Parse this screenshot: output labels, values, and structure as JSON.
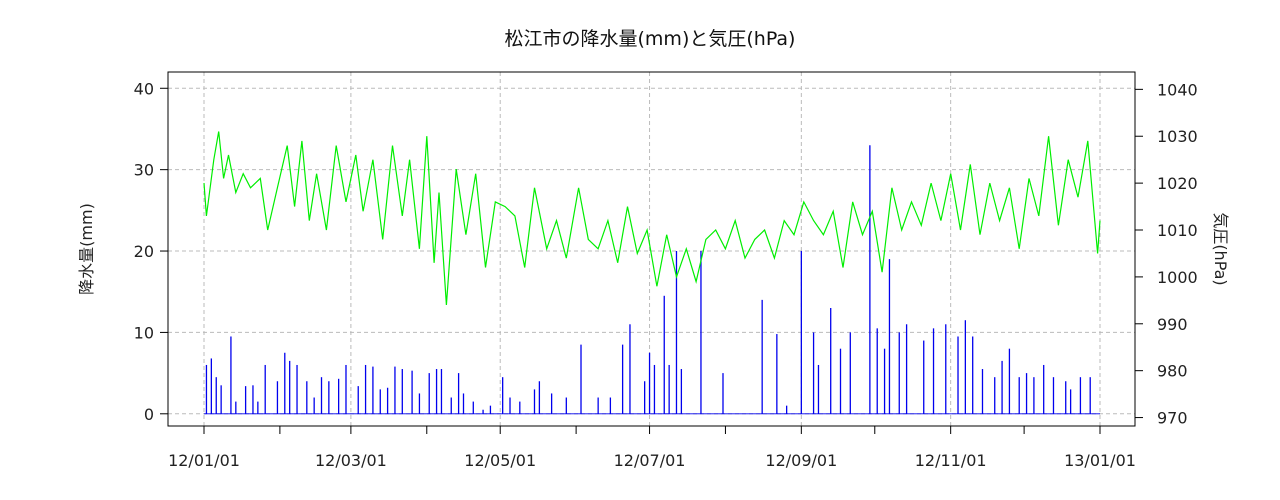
{
  "chart_data": {
    "type": "bar+line",
    "title": "松江市の降水量(mm)と気圧(hPa)",
    "ylabel_left": "降水量(mm)",
    "ylabel_right": "気圧(hPa)",
    "x_tick_labels": [
      "12/01/01",
      "12/03/01",
      "12/05/01",
      "12/07/01",
      "12/09/01",
      "12/11/01",
      "13/01/01"
    ],
    "y_left_ticks": [
      0,
      10,
      20,
      30,
      40
    ],
    "y_right_ticks": [
      970,
      980,
      990,
      1000,
      1010,
      1020,
      1030,
      1040
    ],
    "ylim_left": [
      -1.5,
      42
    ],
    "ylim_right": [
      968.2,
      1043.7
    ],
    "grid": true,
    "grid_color": "#bbbbbb",
    "series": [
      {
        "type": "bar",
        "axis": "left",
        "color": "#0000ee",
        "x": [
          "12/01/02",
          "12/01/04",
          "12/01/06",
          "12/01/08",
          "12/01/12",
          "12/01/14",
          "12/01/18",
          "12/01/21",
          "12/01/23",
          "12/01/26",
          "12/01/31",
          "12/02/03",
          "12/02/05",
          "12/02/08",
          "12/02/12",
          "12/02/15",
          "12/02/18",
          "12/02/21",
          "12/02/25",
          "12/02/28",
          "12/03/04",
          "12/03/07",
          "12/03/10",
          "12/03/13",
          "12/03/16",
          "12/03/19",
          "12/03/22",
          "12/03/26",
          "12/03/29",
          "12/04/02",
          "12/04/05",
          "12/04/07",
          "12/04/11",
          "12/04/14",
          "12/04/16",
          "12/04/20",
          "12/04/24",
          "12/04/27",
          "12/05/02",
          "12/05/05",
          "12/05/09",
          "12/05/15",
          "12/05/17",
          "12/05/22",
          "12/05/28",
          "12/06/03",
          "12/06/10",
          "12/06/15",
          "12/06/20",
          "12/06/23",
          "12/06/29",
          "12/07/01",
          "12/07/03",
          "12/07/07",
          "12/07/09",
          "12/07/12",
          "12/07/14",
          "12/07/22",
          "12/07/31",
          "12/08/16",
          "12/08/22",
          "12/08/26",
          "12/09/01",
          "12/09/06",
          "12/09/08",
          "12/09/13",
          "12/09/17",
          "12/09/21",
          "12/09/29",
          "12/10/02",
          "12/10/05",
          "12/10/07",
          "12/10/11",
          "12/10/14",
          "12/10/21",
          "12/10/25",
          "12/10/30",
          "12/11/04",
          "12/11/07",
          "12/11/10",
          "12/11/14",
          "12/11/19",
          "12/11/22",
          "12/11/25",
          "12/11/29",
          "12/12/02",
          "12/12/05",
          "12/12/09",
          "12/12/13",
          "12/12/18",
          "12/12/20",
          "12/12/24",
          "12/12/28"
        ],
        "values": [
          6,
          6.8,
          4.5,
          3.5,
          9.5,
          1.5,
          3.4,
          3.5,
          1.5,
          6,
          4,
          7.5,
          6.5,
          6,
          4,
          2,
          4.5,
          4,
          4.3,
          6,
          3.4,
          6,
          5.8,
          3,
          3.2,
          5.8,
          5.5,
          5.3,
          2.5,
          5,
          5.5,
          5.5,
          2,
          5,
          2.5,
          1.5,
          0.5,
          1,
          4.5,
          2,
          1.5,
          3,
          4,
          2.5,
          2,
          8.5,
          2,
          2,
          8.5,
          11,
          4,
          7.5,
          6,
          14.5,
          6,
          20,
          5.5,
          20,
          5,
          14,
          9.8,
          1,
          20,
          10,
          6,
          13,
          8,
          10,
          33,
          10.5,
          8,
          19,
          10,
          11,
          9,
          10.5,
          11,
          9.5,
          11.5,
          9.5,
          5.5,
          4.5,
          6.5,
          8,
          4.5,
          5,
          4.5,
          6,
          4.5,
          4,
          3,
          4.5,
          4.5
        ]
      },
      {
        "type": "line",
        "axis": "right",
        "color": "#00ee00",
        "x": [
          "12/01/01",
          "12/01/02",
          "12/01/03",
          "12/01/05",
          "12/01/07",
          "12/01/09",
          "12/01/11",
          "12/01/14",
          "12/01/17",
          "12/01/20",
          "12/01/24",
          "12/01/27",
          "12/01/31",
          "12/02/04",
          "12/02/07",
          "12/02/10",
          "12/02/13",
          "12/02/16",
          "12/02/20",
          "12/02/24",
          "12/02/28",
          "12/03/03",
          "12/03/06",
          "12/03/10",
          "12/03/14",
          "12/03/18",
          "12/03/22",
          "12/03/25",
          "12/03/29",
          "12/04/01",
          "12/04/04",
          "12/04/06",
          "12/04/09",
          "12/04/13",
          "12/04/17",
          "12/04/21",
          "12/04/25",
          "12/04/29",
          "12/05/03",
          "12/05/07",
          "12/05/11",
          "12/05/15",
          "12/05/20",
          "12/05/24",
          "12/05/28",
          "12/06/02",
          "12/06/06",
          "12/06/10",
          "12/06/14",
          "12/06/18",
          "12/06/22",
          "12/06/26",
          "12/06/30",
          "12/07/04",
          "12/07/08",
          "12/07/12",
          "12/07/16",
          "12/07/20",
          "12/07/24",
          "12/07/28",
          "12/08/01",
          "12/08/05",
          "12/08/09",
          "12/08/13",
          "12/08/17",
          "12/08/21",
          "12/08/25",
          "12/08/29",
          "12/09/02",
          "12/09/06",
          "12/09/10",
          "12/09/14",
          "12/09/18",
          "12/09/22",
          "12/09/26",
          "12/09/30",
          "12/10/04",
          "12/10/08",
          "12/10/12",
          "12/10/16",
          "12/10/20",
          "12/10/24",
          "12/10/28",
          "12/11/01",
          "12/11/05",
          "12/11/09",
          "12/11/13",
          "12/11/17",
          "12/11/21",
          "12/11/25",
          "12/11/29",
          "12/12/03",
          "12/12/07",
          "12/12/11",
          "12/12/15",
          "12/12/19",
          "12/12/23",
          "12/12/27",
          "12/12/31",
          "13/01/01"
        ],
        "values": [
          1020,
          1013,
          1017,
          1025,
          1031,
          1021,
          1026,
          1018,
          1022,
          1019,
          1021,
          1010,
          1019,
          1028,
          1015,
          1029,
          1012,
          1022,
          1010,
          1028,
          1016,
          1026,
          1014,
          1025,
          1008,
          1028,
          1013,
          1025,
          1006,
          1030,
          1003,
          1018,
          994,
          1023,
          1009,
          1022,
          1002,
          1016,
          1015,
          1013,
          1002,
          1019,
          1006,
          1012,
          1004,
          1019,
          1008,
          1006,
          1012,
          1003,
          1015,
          1005,
          1010,
          998,
          1009,
          1000,
          1006,
          999,
          1008,
          1010,
          1006,
          1012,
          1004,
          1008,
          1010,
          1004,
          1012,
          1009,
          1016,
          1012,
          1009,
          1014,
          1002,
          1016,
          1009,
          1014,
          1001,
          1019,
          1010,
          1016,
          1011,
          1020,
          1012,
          1022,
          1010,
          1024,
          1009,
          1020,
          1012,
          1019,
          1006,
          1021,
          1013,
          1030,
          1011,
          1025,
          1017,
          1029,
          1005,
          1012
        ]
      }
    ]
  }
}
